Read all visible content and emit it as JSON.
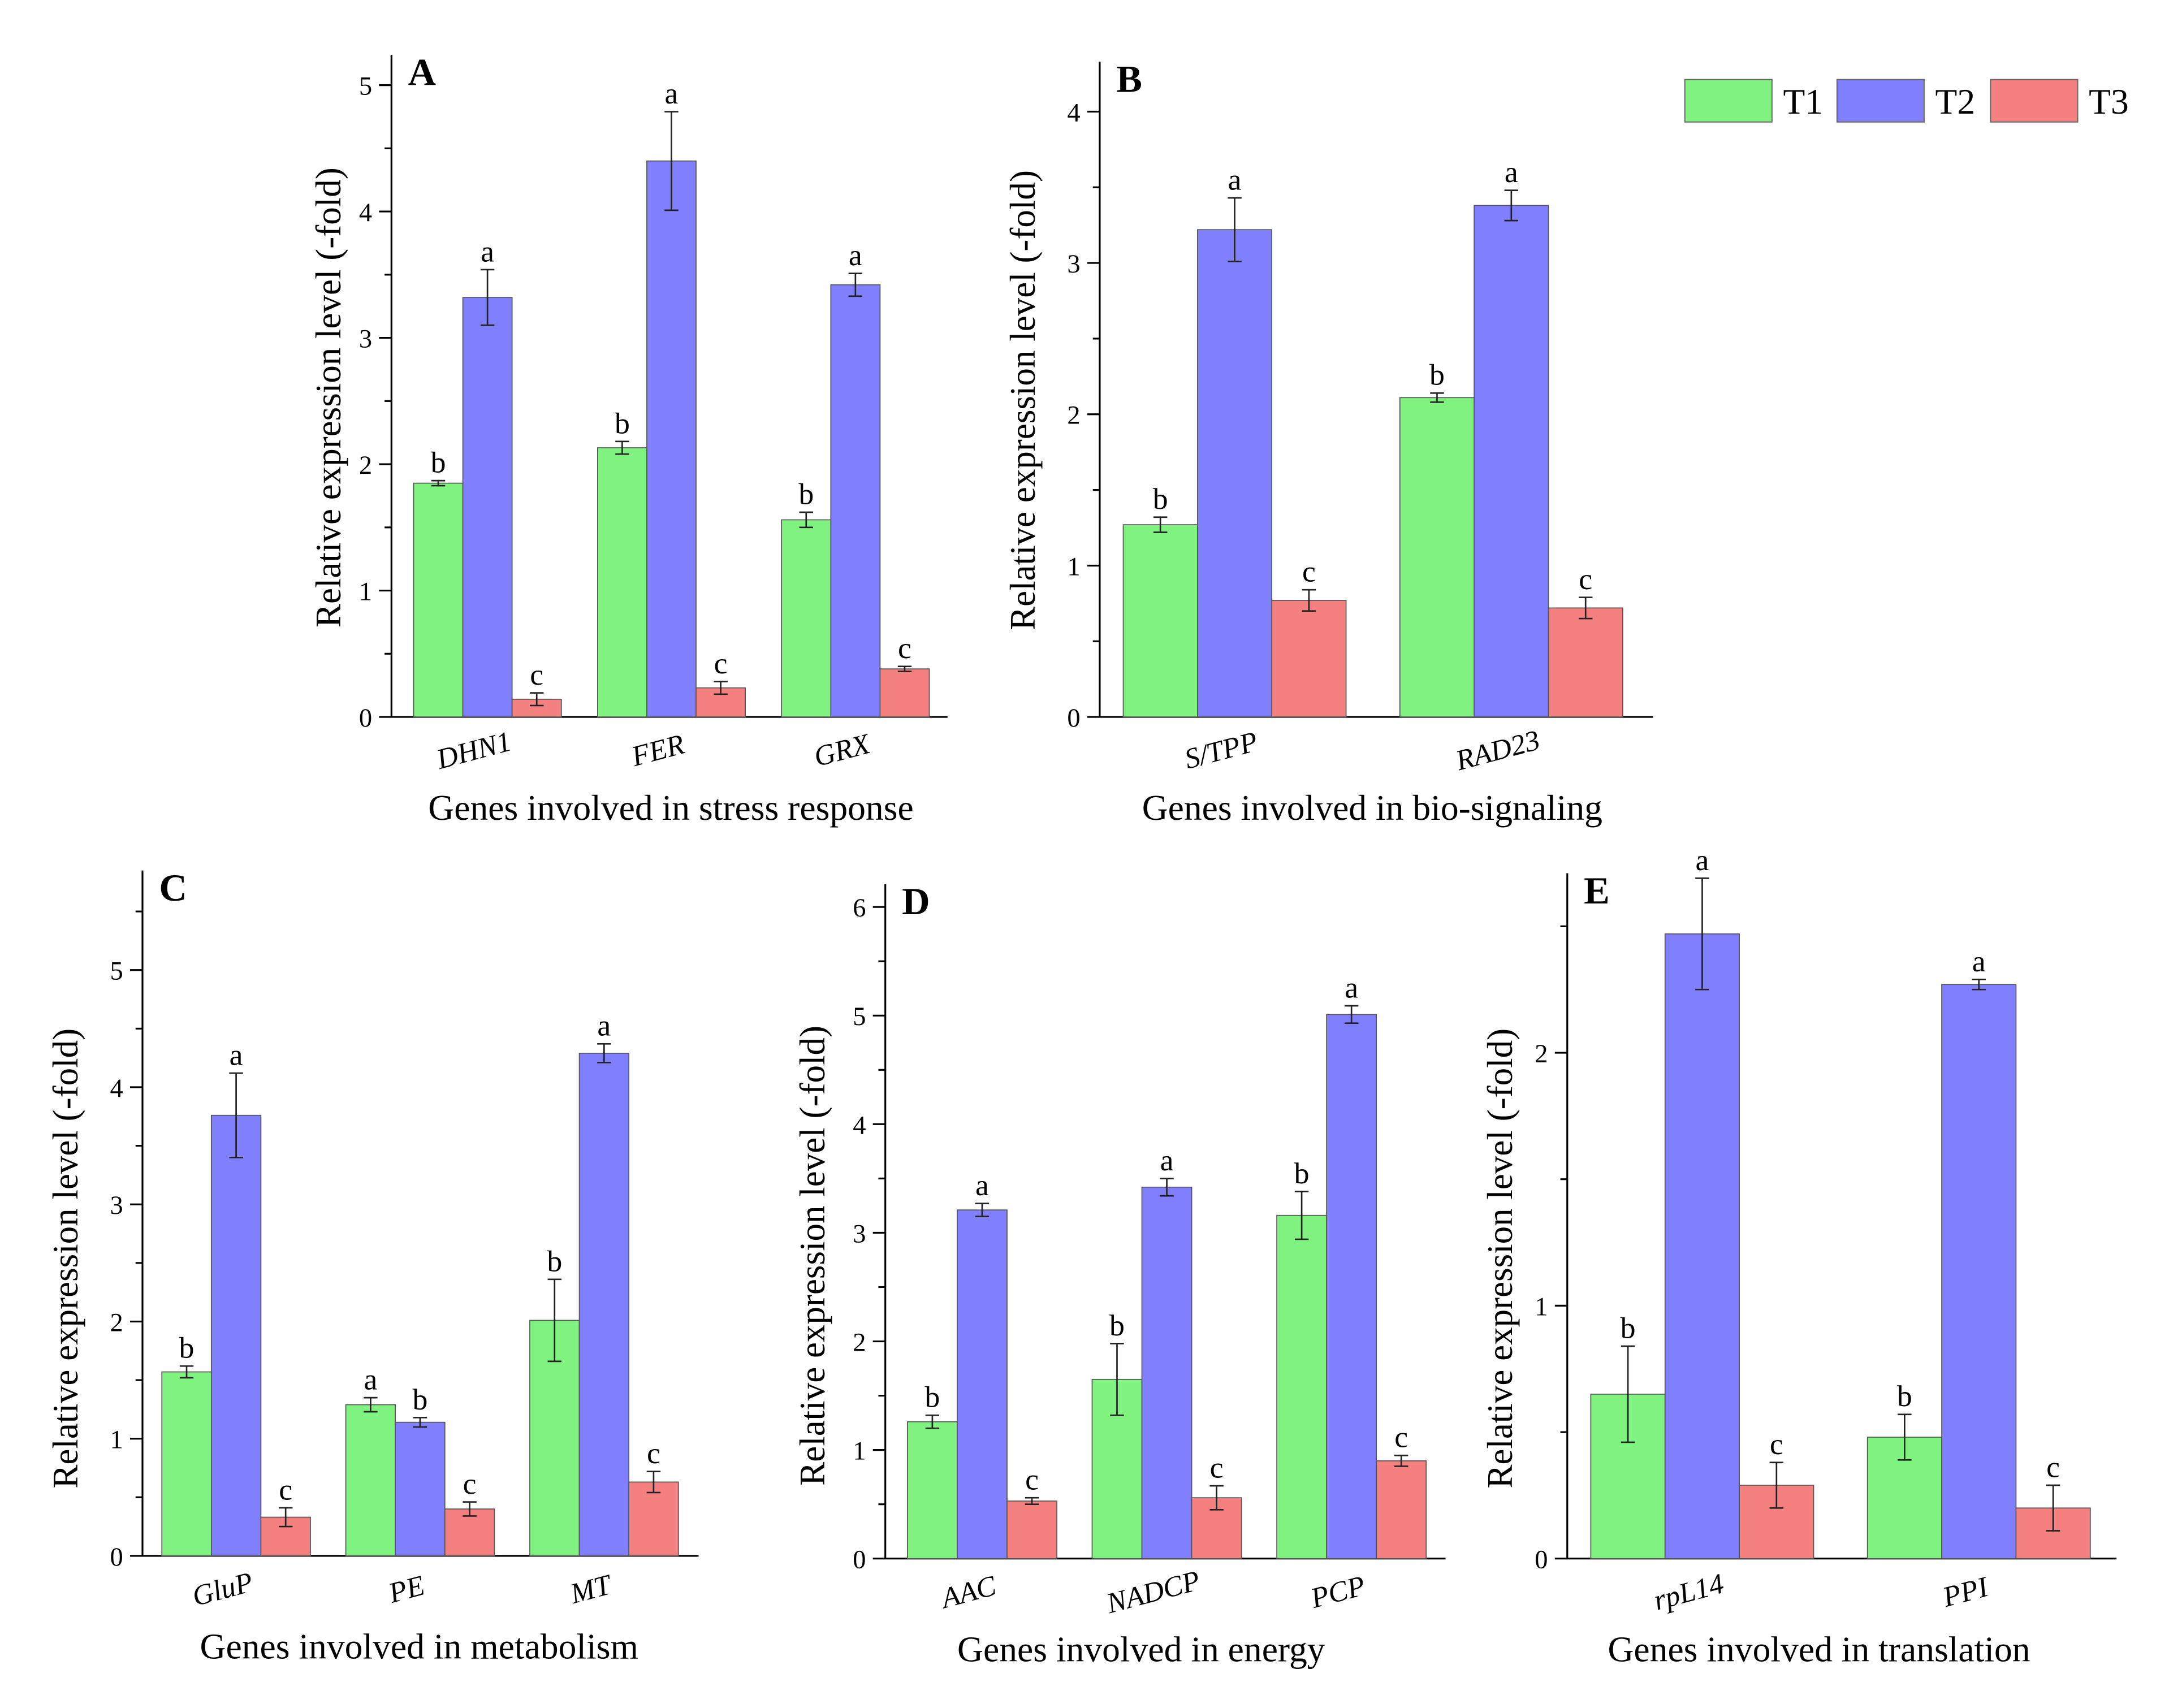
{
  "legend": [
    {
      "name": "T1",
      "color": "#80f280"
    },
    {
      "name": "T2",
      "color": "#8080ff"
    },
    {
      "name": "T3",
      "color": "#f58080"
    }
  ],
  "chart_data": [
    {
      "panel": "A",
      "type": "bar",
      "categories": [
        "DHN1",
        "FER",
        "GRX"
      ],
      "series": [
        {
          "name": "T1",
          "color": "#80f280",
          "values": [
            1.85,
            2.13,
            1.56
          ],
          "errors": [
            0.02,
            0.05,
            0.06
          ],
          "letters": [
            "b",
            "b",
            "b"
          ]
        },
        {
          "name": "T2",
          "color": "#8080ff",
          "values": [
            3.32,
            4.4,
            3.42
          ],
          "errors": [
            0.22,
            0.39,
            0.09
          ],
          "letters": [
            "a",
            "a",
            "a"
          ]
        },
        {
          "name": "T3",
          "color": "#f58080",
          "values": [
            0.14,
            0.23,
            0.38
          ],
          "errors": [
            0.05,
            0.05,
            0.02
          ],
          "letters": [
            "c",
            "c",
            "c"
          ]
        }
      ],
      "xlabel": "Genes involved in stress response",
      "ylabel": "Relative expression level (-fold)",
      "ylim": [
        0,
        5.24
      ],
      "yticks": [
        0,
        1,
        2,
        3,
        4,
        5
      ]
    },
    {
      "panel": "B",
      "type": "bar",
      "categories": [
        "S/TPP",
        "RAD23"
      ],
      "series": [
        {
          "name": "T1",
          "color": "#80f280",
          "values": [
            1.27,
            2.11
          ],
          "errors": [
            0.05,
            0.03
          ],
          "letters": [
            "b",
            "b"
          ]
        },
        {
          "name": "T2",
          "color": "#8080ff",
          "values": [
            3.22,
            3.38
          ],
          "errors": [
            0.21,
            0.1
          ],
          "letters": [
            "a",
            "a"
          ]
        },
        {
          "name": "T3",
          "color": "#f58080",
          "values": [
            0.77,
            0.72
          ],
          "errors": [
            0.07,
            0.07
          ],
          "letters": [
            "c",
            "c"
          ]
        }
      ],
      "xlabel": "Genes involved in bio-signaling",
      "ylabel": "Relative expression level (-fold)",
      "ylim": [
        0,
        4.33
      ],
      "yticks": [
        0,
        1,
        2,
        3,
        4
      ]
    },
    {
      "panel": "C",
      "type": "bar",
      "categories": [
        "GluP",
        "PE",
        "MT"
      ],
      "series": [
        {
          "name": "T1",
          "color": "#80f280",
          "values": [
            1.57,
            1.29,
            2.01
          ],
          "errors": [
            0.05,
            0.06,
            0.35
          ],
          "letters": [
            "b",
            "a",
            "b"
          ]
        },
        {
          "name": "T2",
          "color": "#8080ff",
          "values": [
            3.76,
            1.14,
            4.29
          ],
          "errors": [
            0.36,
            0.04,
            0.08
          ],
          "letters": [
            "a",
            "b",
            "a"
          ]
        },
        {
          "name": "T3",
          "color": "#f58080",
          "values": [
            0.33,
            0.4,
            0.63
          ],
          "errors": [
            0.08,
            0.06,
            0.09
          ],
          "letters": [
            "c",
            "c",
            "c"
          ]
        }
      ],
      "xlabel": "Genes involved in metabolism",
      "ylabel": "Relative expression level (-fold)",
      "ylim": [
        0,
        5.85
      ],
      "yticks": [
        0,
        1,
        2,
        3,
        4,
        5
      ]
    },
    {
      "panel": "D",
      "type": "bar",
      "categories": [
        "AAC",
        "NADCP",
        "PCP"
      ],
      "series": [
        {
          "name": "T1",
          "color": "#80f280",
          "values": [
            1.26,
            1.65,
            3.16
          ],
          "errors": [
            0.06,
            0.33,
            0.22
          ],
          "letters": [
            "b",
            "b",
            "b"
          ]
        },
        {
          "name": "T2",
          "color": "#8080ff",
          "values": [
            3.21,
            3.42,
            5.01
          ],
          "errors": [
            0.06,
            0.08,
            0.08
          ],
          "letters": [
            "a",
            "a",
            "a"
          ]
        },
        {
          "name": "T3",
          "color": "#f58080",
          "values": [
            0.53,
            0.56,
            0.9
          ],
          "errors": [
            0.03,
            0.11,
            0.05
          ],
          "letters": [
            "c",
            "c",
            "c"
          ]
        }
      ],
      "xlabel": "Genes involved in energy",
      "ylabel": "Relative expression level (-fold)",
      "ylim": [
        0,
        6.21
      ],
      "yticks": [
        0,
        1,
        2,
        3,
        4,
        5,
        6
      ]
    },
    {
      "panel": "E",
      "type": "bar",
      "categories": [
        "rpL14",
        "PPI"
      ],
      "series": [
        {
          "name": "T1",
          "color": "#80f280",
          "values": [
            0.65,
            0.48
          ],
          "errors": [
            0.19,
            0.09
          ],
          "letters": [
            "b",
            "b"
          ]
        },
        {
          "name": "T2",
          "color": "#8080ff",
          "values": [
            2.47,
            2.27
          ],
          "errors": [
            0.22,
            0.02
          ],
          "letters": [
            "a",
            "a"
          ]
        },
        {
          "name": "T3",
          "color": "#f58080",
          "values": [
            0.29,
            0.2
          ],
          "errors": [
            0.09,
            0.09
          ],
          "letters": [
            "c",
            "c"
          ]
        }
      ],
      "xlabel": "Genes involved in translation",
      "ylabel": "Relative expression level (-fold)",
      "ylim": [
        0,
        2.71
      ],
      "yticks": [
        0,
        1,
        2
      ]
    }
  ]
}
